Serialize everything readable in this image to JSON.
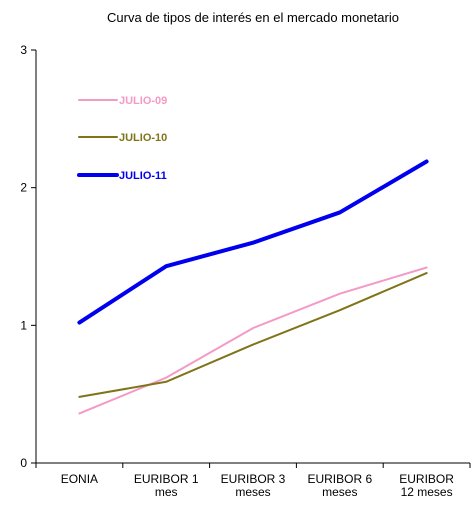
{
  "chart_data": {
    "type": "line",
    "title": "Curva de tipos de interés en el mercado monetario",
    "xlabel": "",
    "ylabel": "",
    "ylim": [
      0,
      3
    ],
    "yticks": [
      "0",
      "1",
      "2",
      "3"
    ],
    "categories": [
      [
        "EONIA"
      ],
      [
        "EURIBOR 1",
        "mes"
      ],
      [
        "EURIBOR 3",
        "meses"
      ],
      [
        "EURIBOR 6",
        "meses"
      ],
      [
        "EURIBOR",
        "12 meses"
      ]
    ],
    "grid": false,
    "legend_position": "top-left",
    "series": [
      {
        "name": "JULIO-09",
        "color": "#f49ac6",
        "values": [
          0.36,
          0.62,
          0.98,
          1.23,
          1.42
        ]
      },
      {
        "name": "JULIO-10",
        "color": "#807418",
        "values": [
          0.48,
          0.59,
          0.86,
          1.11,
          1.38
        ]
      },
      {
        "name": "JULIO-11",
        "color": "#0000ee",
        "values": [
          1.02,
          1.43,
          1.6,
          1.82,
          2.19
        ]
      }
    ]
  }
}
